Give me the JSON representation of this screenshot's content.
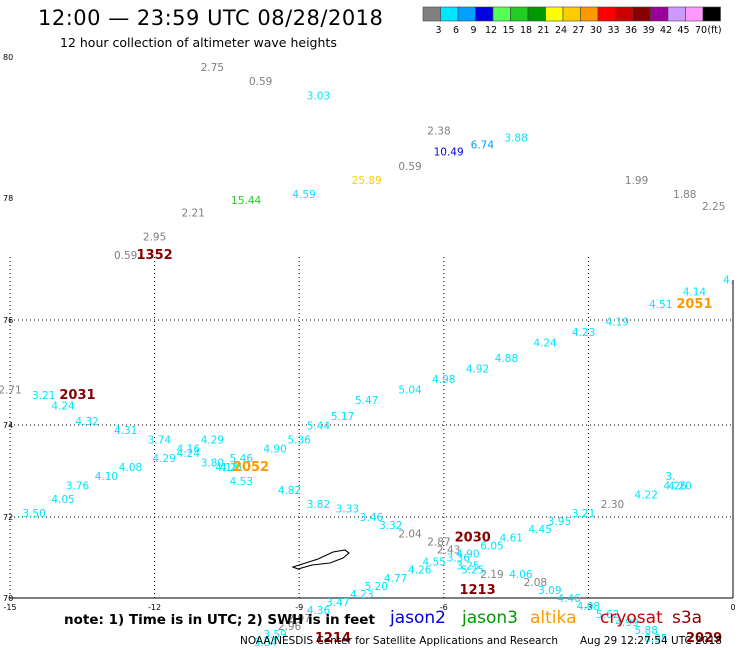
{
  "header": {
    "title": "12:00 — 23:59 UTC 08/28/2018",
    "subtitle": "12 hour collection of altimeter wave heights"
  },
  "colorbar": {
    "unit_label": "(ft)",
    "bins": [
      {
        "label": "3",
        "color": "#808080"
      },
      {
        "label": "6",
        "color": "#00e5ff"
      },
      {
        "label": "9",
        "color": "#00a0ff"
      },
      {
        "label": "12",
        "color": "#0000e0"
      },
      {
        "label": "15",
        "color": "#55ff55"
      },
      {
        "label": "18",
        "color": "#22cc22"
      },
      {
        "label": "21",
        "color": "#009900"
      },
      {
        "label": "24",
        "color": "#ffff00"
      },
      {
        "label": "27",
        "color": "#ffcc00"
      },
      {
        "label": "30",
        "color": "#ff9900"
      },
      {
        "label": "33",
        "color": "#ff0000"
      },
      {
        "label": "36",
        "color": "#cc0000"
      },
      {
        "label": "39",
        "color": "#880000"
      },
      {
        "label": "42",
        "color": "#990099"
      },
      {
        "label": "45",
        "color": "#cc99ff"
      },
      {
        "label": "70",
        "color": "#ff99ff"
      },
      {
        "label": "",
        "color": "#000000"
      }
    ]
  },
  "map": {
    "lon_range": [
      -15,
      0
    ],
    "lat_range": [
      70,
      80
    ],
    "lon_ticks": [
      {
        "value": -15,
        "label": "-15"
      },
      {
        "value": -12,
        "label": "-12"
      },
      {
        "value": -9,
        "label": "-9"
      },
      {
        "value": -6,
        "label": "-6"
      },
      {
        "value": -3,
        "label": "-3"
      },
      {
        "value": 0,
        "label": "0"
      }
    ],
    "lat_ticks": [
      {
        "value": 80,
        "label": "80"
      },
      {
        "value": 78,
        "label": "78"
      },
      {
        "value": 76,
        "label": "76"
      },
      {
        "value": 74,
        "label": "74"
      },
      {
        "value": 72,
        "label": "72"
      },
      {
        "value": 70,
        "label": "70"
      }
    ],
    "grid_lons": [
      -12,
      -9,
      -6,
      -3
    ],
    "grid_lats": [
      76,
      74,
      72
    ],
    "island_name_icon": "jan-mayen-island-outline"
  },
  "observations": [
    {
      "lon": -10.8,
      "lat": 79.8,
      "text": "2.75",
      "color": "#808080"
    },
    {
      "lon": -9.8,
      "lat": 79.6,
      "text": "0.59",
      "color": "#808080"
    },
    {
      "lon": -8.6,
      "lat": 79.4,
      "text": "3.03",
      "color": "#00e5ff"
    },
    {
      "lon": -6.1,
      "lat": 78.9,
      "text": "2.38",
      "color": "#808080"
    },
    {
      "lon": -5.9,
      "lat": 78.6,
      "text": "10.49",
      "color": "#0000e0"
    },
    {
      "lon": -5.2,
      "lat": 78.7,
      "text": "6.74",
      "color": "#00a0ff"
    },
    {
      "lon": -4.5,
      "lat": 78.8,
      "text": "3.88",
      "color": "#00e5ff"
    },
    {
      "lon": -6.7,
      "lat": 78.4,
      "text": "0.59",
      "color": "#808080"
    },
    {
      "lon": -7.6,
      "lat": 78.2,
      "text": "25.89",
      "color": "#ffcc00"
    },
    {
      "lon": -8.9,
      "lat": 78.0,
      "text": "4.59",
      "color": "#00e5ff"
    },
    {
      "lon": -10.1,
      "lat": 77.9,
      "text": "15.44",
      "color": "#22cc22"
    },
    {
      "lon": -11.2,
      "lat": 77.7,
      "text": "2.21",
      "color": "#808080"
    },
    {
      "lon": -12.0,
      "lat": 77.3,
      "text": "2.95",
      "color": "#808080"
    },
    {
      "lon": -12.6,
      "lat": 77.0,
      "text": "0.59",
      "color": "#808080"
    },
    {
      "lon": -2.0,
      "lat": 78.2,
      "text": "1.99",
      "color": "#808080"
    },
    {
      "lon": -1.0,
      "lat": 78.0,
      "text": "1.88",
      "color": "#808080"
    },
    {
      "lon": -0.4,
      "lat": 77.8,
      "text": "2.25",
      "color": "#808080"
    },
    {
      "lon": -0.1,
      "lat": 76.6,
      "text": "4.",
      "color": "#00e5ff"
    },
    {
      "lon": -0.8,
      "lat": 76.4,
      "text": "4.14",
      "color": "#00e5ff"
    },
    {
      "lon": -1.5,
      "lat": 76.2,
      "text": "4.51",
      "color": "#00e5ff"
    },
    {
      "lon": -2.4,
      "lat": 75.9,
      "text": "4.19",
      "color": "#00e5ff"
    },
    {
      "lon": -3.1,
      "lat": 75.7,
      "text": "4.23",
      "color": "#00e5ff"
    },
    {
      "lon": -3.9,
      "lat": 75.5,
      "text": "4.24",
      "color": "#00e5ff"
    },
    {
      "lon": -4.7,
      "lat": 75.2,
      "text": "4.88",
      "color": "#00e5ff"
    },
    {
      "lon": -5.3,
      "lat": 75.0,
      "text": "4.92",
      "color": "#00e5ff"
    },
    {
      "lon": -6.0,
      "lat": 74.8,
      "text": "4.98",
      "color": "#00e5ff"
    },
    {
      "lon": -6.7,
      "lat": 74.6,
      "text": "5.04",
      "color": "#00e5ff"
    },
    {
      "lon": -7.6,
      "lat": 74.4,
      "text": "5.47",
      "color": "#00e5ff"
    },
    {
      "lon": -8.1,
      "lat": 74.1,
      "text": "5.17",
      "color": "#00e5ff"
    },
    {
      "lon": -8.6,
      "lat": 73.9,
      "text": "5.44",
      "color": "#00e5ff"
    },
    {
      "lon": -9.0,
      "lat": 73.6,
      "text": "5.36",
      "color": "#00e5ff"
    },
    {
      "lon": -9.5,
      "lat": 73.4,
      "text": "4.90",
      "color": "#00e5ff"
    },
    {
      "lon": -10.2,
      "lat": 73.2,
      "text": "5.46",
      "color": "#00e5ff"
    },
    {
      "lon": -15.0,
      "lat": 74.6,
      "text": "2.71",
      "color": "#808080"
    },
    {
      "lon": -14.3,
      "lat": 74.5,
      "text": "3.21",
      "color": "#00e5ff"
    },
    {
      "lon": -13.9,
      "lat": 74.3,
      "text": "4.24",
      "color": "#00e5ff"
    },
    {
      "lon": -13.4,
      "lat": 74.0,
      "text": "4.32",
      "color": "#00e5ff"
    },
    {
      "lon": -12.6,
      "lat": 73.8,
      "text": "4.31",
      "color": "#00e5ff"
    },
    {
      "lon": -11.9,
      "lat": 73.6,
      "text": "3.74",
      "color": "#00e5ff"
    },
    {
      "lon": -11.3,
      "lat": 73.3,
      "text": "4.24",
      "color": "#00e5ff"
    },
    {
      "lon": -10.8,
      "lat": 73.1,
      "text": "3.80",
      "color": "#00e5ff"
    },
    {
      "lon": -10.4,
      "lat": 73.0,
      "text": "4.21",
      "color": "#00e5ff"
    },
    {
      "lon": -10.5,
      "lat": 73.0,
      "text": "4.18",
      "color": "#00e5ff"
    },
    {
      "lon": -10.2,
      "lat": 72.7,
      "text": "4.53",
      "color": "#00e5ff"
    },
    {
      "lon": -9.2,
      "lat": 72.5,
      "text": "4.82",
      "color": "#00e5ff"
    },
    {
      "lon": -8.6,
      "lat": 72.2,
      "text": "3.82",
      "color": "#00e5ff"
    },
    {
      "lon": -8.0,
      "lat": 72.1,
      "text": "3.33",
      "color": "#00e5ff"
    },
    {
      "lon": -7.5,
      "lat": 71.9,
      "text": "3.46",
      "color": "#00e5ff"
    },
    {
      "lon": -7.1,
      "lat": 71.7,
      "text": "3.32",
      "color": "#00e5ff"
    },
    {
      "lon": -6.7,
      "lat": 71.5,
      "text": "2.04",
      "color": "#808080"
    },
    {
      "lon": -6.1,
      "lat": 71.3,
      "text": "2.87",
      "color": "#808080"
    },
    {
      "lon": -5.9,
      "lat": 71.1,
      "text": "2.43",
      "color": "#808080"
    },
    {
      "lon": -5.7,
      "lat": 70.9,
      "text": "3.36",
      "color": "#00e5ff"
    },
    {
      "lon": -5.5,
      "lat": 70.7,
      "text": "3.25",
      "color": "#00e5ff"
    },
    {
      "lon": -5.4,
      "lat": 70.6,
      "text": "5.25",
      "color": "#00e5ff"
    },
    {
      "lon": -5.0,
      "lat": 70.5,
      "text": "2.19",
      "color": "#808080"
    },
    {
      "lon": -4.4,
      "lat": 70.5,
      "text": "4.06",
      "color": "#00e5ff"
    },
    {
      "lon": -4.1,
      "lat": 70.3,
      "text": "2.08",
      "color": "#808080"
    },
    {
      "lon": -3.8,
      "lat": 70.1,
      "text": "3.09",
      "color": "#00e5ff"
    },
    {
      "lon": -3.4,
      "lat": 69.9,
      "text": "4.46",
      "color": "#00e5ff"
    },
    {
      "lon": -3.0,
      "lat": 69.7,
      "text": "4.08",
      "color": "#00e5ff"
    },
    {
      "lon": -2.6,
      "lat": 69.5,
      "text": "5.62",
      "color": "#00e5ff"
    },
    {
      "lon": -2.2,
      "lat": 69.3,
      "text": "4.99",
      "color": "#00e5ff"
    },
    {
      "lon": -1.8,
      "lat": 69.1,
      "text": "5.88",
      "color": "#00e5ff"
    },
    {
      "lon": -1.6,
      "lat": 68.9,
      "text": "6.95",
      "color": "#00e5ff"
    },
    {
      "lon": -14.5,
      "lat": 72.0,
      "text": "3.50",
      "color": "#00e5ff"
    },
    {
      "lon": -13.9,
      "lat": 72.3,
      "text": "4.05",
      "color": "#00e5ff"
    },
    {
      "lon": -13.6,
      "lat": 72.6,
      "text": "3.76",
      "color": "#00e5ff"
    },
    {
      "lon": -13.0,
      "lat": 72.8,
      "text": "4.10",
      "color": "#00e5ff"
    },
    {
      "lon": -12.5,
      "lat": 73.0,
      "text": "4.08",
      "color": "#00e5ff"
    },
    {
      "lon": -11.8,
      "lat": 73.2,
      "text": "4.29",
      "color": "#00e5ff"
    },
    {
      "lon": -11.3,
      "lat": 73.4,
      "text": "4.16",
      "color": "#00e5ff"
    },
    {
      "lon": -10.8,
      "lat": 73.6,
      "text": "4.29",
      "color": "#00e5ff"
    },
    {
      "lon": -1.3,
      "lat": 72.8,
      "text": "3.",
      "color": "#00e5ff"
    },
    {
      "lon": -1.1,
      "lat": 72.6,
      "text": "4.20",
      "color": "#00e5ff"
    },
    {
      "lon": -1.2,
      "lat": 72.6,
      "text": "4.26",
      "color": "#00e5ff"
    },
    {
      "lon": -1.8,
      "lat": 72.4,
      "text": "4.22",
      "color": "#00e5ff"
    },
    {
      "lon": -2.5,
      "lat": 72.2,
      "text": "2.30",
      "color": "#808080"
    },
    {
      "lon": -3.1,
      "lat": 72.0,
      "text": "3.21",
      "color": "#00e5ff"
    },
    {
      "lon": -3.6,
      "lat": 71.8,
      "text": "3.95",
      "color": "#00e5ff"
    },
    {
      "lon": -4.0,
      "lat": 71.6,
      "text": "4.45",
      "color": "#00e5ff"
    },
    {
      "lon": -4.6,
      "lat": 71.4,
      "text": "4.61",
      "color": "#00e5ff"
    },
    {
      "lon": -5.0,
      "lat": 71.2,
      "text": "6.05",
      "color": "#00e5ff"
    },
    {
      "lon": -5.5,
      "lat": 71.0,
      "text": "4.90",
      "color": "#00e5ff"
    },
    {
      "lon": -6.2,
      "lat": 70.8,
      "text": "4.55",
      "color": "#00e5ff"
    },
    {
      "lon": -6.5,
      "lat": 70.6,
      "text": "4.26",
      "color": "#00e5ff"
    },
    {
      "lon": -7.0,
      "lat": 70.4,
      "text": "4.77",
      "color": "#00e5ff"
    },
    {
      "lon": -7.4,
      "lat": 70.2,
      "text": "5.20",
      "color": "#00e5ff"
    },
    {
      "lon": -7.7,
      "lat": 70.0,
      "text": "4.23",
      "color": "#00e5ff"
    },
    {
      "lon": -8.2,
      "lat": 69.8,
      "text": "3.47",
      "color": "#00e5ff"
    },
    {
      "lon": -8.6,
      "lat": 69.6,
      "text": "4.36",
      "color": "#00e5ff"
    },
    {
      "lon": -9.0,
      "lat": 69.4,
      "text": "2.97",
      "color": "#808080"
    },
    {
      "lon": -9.2,
      "lat": 69.2,
      "text": "2.96",
      "color": "#808080"
    },
    {
      "lon": -9.5,
      "lat": 69.0,
      "text": "3.59",
      "color": "#00e5ff"
    },
    {
      "lon": -9.7,
      "lat": 68.8,
      "text": "3.84",
      "color": "#00e5ff"
    }
  ],
  "tracks": [
    {
      "text": "1352",
      "color": "#880000",
      "lon": -12.0,
      "lat": 77.0
    },
    {
      "text": "2031",
      "color": "#880000",
      "lon": -13.6,
      "lat": 74.5
    },
    {
      "text": "2052",
      "color": "#ff9900",
      "lon": -10.0,
      "lat": 73.0
    },
    {
      "text": "2051",
      "color": "#ff9900",
      "lon": -0.8,
      "lat": 76.2
    },
    {
      "text": "2030",
      "color": "#880000",
      "lon": -5.4,
      "lat": 71.4
    },
    {
      "text": "1213",
      "color": "#880000",
      "lon": -5.3,
      "lat": 70.1
    },
    {
      "text": "1214",
      "color": "#880000",
      "lon": -8.3,
      "lat": 68.9
    },
    {
      "text": "2029",
      "color": "#880000",
      "lon": -0.6,
      "lat": 68.9
    }
  ],
  "legend": {
    "note": "note:  1) Time is in UTC; 2) SWH is in feet",
    "satellites": [
      {
        "name": "jason2",
        "color": "#0000e0"
      },
      {
        "name": "jason3",
        "color": "#009900"
      },
      {
        "name": "altika",
        "color": "#ff9900"
      },
      {
        "name": "cryosat",
        "color": "#cc0000"
      },
      {
        "name": "s3a",
        "color": "#880000"
      }
    ]
  },
  "footer": {
    "credit": "NOAA/NESDIS Center for Satellite Applications and Research",
    "timestamp": "Aug 29 12:27:54 UTC 2018"
  }
}
